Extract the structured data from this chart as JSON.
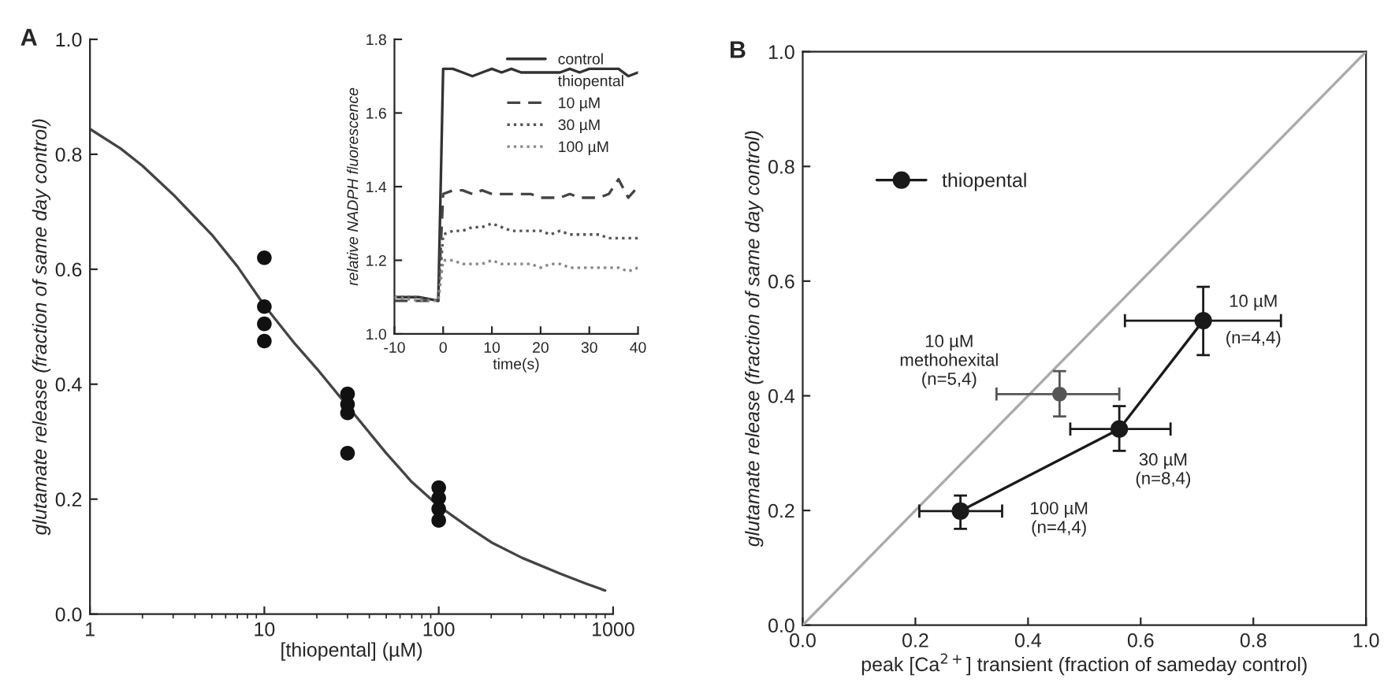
{
  "chart_data": [
    {
      "type": "scatter",
      "title": "A",
      "xlabel": "[thiopental] (µM)",
      "ylabel": "glutamate release (fraction of same day control)",
      "log": "x",
      "xlim": [
        1,
        1000
      ],
      "xticks": [
        1,
        10,
        100,
        1000
      ],
      "ylim": [
        0,
        1
      ],
      "yticks": [
        {
          "value": 0,
          "label": "0.0"
        },
        {
          "value": 0.2,
          "label": "0.2"
        },
        {
          "value": 0.4,
          "label": "0.4"
        },
        {
          "value": 0.6,
          "label": "0.6"
        },
        {
          "value": 0.8,
          "label": "0.8"
        },
        {
          "value": 1,
          "label": "1.0"
        }
      ],
      "series": [
        {
          "type": "scatter",
          "marker": "circle",
          "color": "#111111",
          "x": [
            10,
            10,
            10,
            10,
            30,
            30,
            30,
            30,
            100,
            100,
            100,
            100
          ],
          "values": [
            0.62,
            0.535,
            0.505,
            0.475,
            0.383,
            0.365,
            0.35,
            0.28,
            0.22,
            0.202,
            0.183,
            0.163
          ]
        },
        {
          "type": "line",
          "marker": "none",
          "color": "#444444",
          "x": [
            1,
            1.5,
            2,
            3,
            5,
            7,
            10,
            15,
            20,
            30,
            50,
            70,
            100,
            150,
            200,
            300,
            500,
            700,
            900
          ],
          "values": [
            0.844,
            0.81,
            0.78,
            0.73,
            0.66,
            0.605,
            0.537,
            0.47,
            0.427,
            0.362,
            0.28,
            0.23,
            0.188,
            0.15,
            0.125,
            0.098,
            0.07,
            0.053,
            0.041
          ]
        }
      ]
    },
    {
      "type": "line",
      "xlabel": "time(s)",
      "ylabel": "relative NADPH fluorescence",
      "xlim": [
        -10,
        40
      ],
      "xticks": [
        -10,
        0,
        10,
        20,
        30,
        40
      ],
      "ylim": [
        1.0,
        1.8
      ],
      "yticks": [
        {
          "value": 1.0,
          "label": "1.0"
        },
        {
          "value": 1.2,
          "label": "1.2"
        },
        {
          "value": 1.4,
          "label": "1.4"
        },
        {
          "value": 1.6,
          "label": "1.6"
        },
        {
          "value": 1.8,
          "label": "1.8"
        }
      ],
      "legend": "top right",
      "legend_title": "thiopental",
      "x": [
        -10,
        -5,
        -1,
        0,
        2,
        4,
        6,
        8,
        10,
        12,
        14,
        16,
        18,
        20,
        22,
        24,
        26,
        28,
        30,
        32,
        34,
        36,
        38,
        40
      ],
      "series": [
        {
          "name": "control",
          "line_style": "solid",
          "color": "#333333",
          "values": [
            1.1,
            1.1,
            1.09,
            1.72,
            1.72,
            1.71,
            1.7,
            1.71,
            1.72,
            1.71,
            1.72,
            1.71,
            1.71,
            1.71,
            1.71,
            1.71,
            1.72,
            1.71,
            1.72,
            1.72,
            1.72,
            1.72,
            1.7,
            1.71
          ]
        },
        {
          "name": "10 µM",
          "line_style": "dashed",
          "color": "#444444",
          "values": [
            1.09,
            1.09,
            1.09,
            1.38,
            1.39,
            1.39,
            1.38,
            1.39,
            1.38,
            1.38,
            1.38,
            1.38,
            1.38,
            1.37,
            1.37,
            1.37,
            1.38,
            1.37,
            1.37,
            1.37,
            1.38,
            1.42,
            1.37,
            1.4
          ]
        },
        {
          "name": "30 µM",
          "line_style": "dotted",
          "color": "#555555",
          "values": [
            1.1,
            1.1,
            1.09,
            1.27,
            1.28,
            1.28,
            1.29,
            1.29,
            1.3,
            1.29,
            1.28,
            1.28,
            1.28,
            1.28,
            1.27,
            1.28,
            1.27,
            1.27,
            1.27,
            1.27,
            1.26,
            1.26,
            1.26,
            1.26
          ]
        },
        {
          "name": "100 µM",
          "line_style": "dotted",
          "color": "#888888",
          "values": [
            1.1,
            1.09,
            1.09,
            1.2,
            1.2,
            1.19,
            1.19,
            1.19,
            1.2,
            1.19,
            1.19,
            1.19,
            1.19,
            1.18,
            1.19,
            1.19,
            1.18,
            1.18,
            1.18,
            1.18,
            1.18,
            1.18,
            1.17,
            1.18
          ]
        }
      ]
    },
    {
      "type": "scatter",
      "title": "B",
      "xlabel": "peak [Ca$^{2+}$] transient (fraction of sameday control)",
      "ylabel": "glutamate release (fraction of same day control)",
      "xlim": [
        0,
        1
      ],
      "xticks": [
        {
          "value": 0,
          "label": "0.0"
        },
        {
          "value": 0.2,
          "label": "0.2"
        },
        {
          "value": 0.4,
          "label": "0.4"
        },
        {
          "value": 0.6,
          "label": "0.6"
        },
        {
          "value": 0.8,
          "label": "0.8"
        },
        {
          "value": 1,
          "label": "1.0"
        }
      ],
      "ylim": [
        0,
        1
      ],
      "yticks": [
        {
          "value": 0,
          "label": "0.0"
        },
        {
          "value": 0.2,
          "label": "0.2"
        },
        {
          "value": 0.4,
          "label": "0.4"
        },
        {
          "value": 0.6,
          "label": "0.6"
        },
        {
          "value": 0.8,
          "label": "0.8"
        },
        {
          "value": 1,
          "label": "1.0"
        }
      ],
      "legend": "top left",
      "series": [
        {
          "type": "line",
          "marker": "none",
          "color": "#aaaaaa",
          "x": [
            0,
            1
          ],
          "values": [
            0,
            1
          ]
        },
        {
          "name": "thiopental",
          "type": "line",
          "marker": "circle",
          "color": "#1a1a1a",
          "x": [
            0.28,
            0.562,
            0.711
          ],
          "values": [
            0.199,
            0.342,
            0.531
          ],
          "errors": [
            [
              0.168,
              0.226
            ],
            [
              0.304,
              0.382
            ],
            [
              0.471,
              0.59
            ]
          ],
          "xerrors": [
            [
              0.207,
              0.354
            ],
            [
              0.475,
              0.653
            ],
            [
              0.572,
              0.849
            ]
          ]
        },
        {
          "type": "scatter",
          "marker": "circle",
          "color": "#555555",
          "x": [
            0.456
          ],
          "values": [
            0.403
          ],
          "errors": [
            [
              0.364,
              0.443
            ]
          ],
          "xerrors": [
            [
              0.344,
              0.562
            ]
          ]
        }
      ],
      "annotations": [
        "10 µM\n(n=4,4)",
        "30 µM\n(n=8,4)",
        "100 µM\n(n=4,4)",
        "10 µM\nmethohexital\n(n=5,4)"
      ]
    }
  ]
}
